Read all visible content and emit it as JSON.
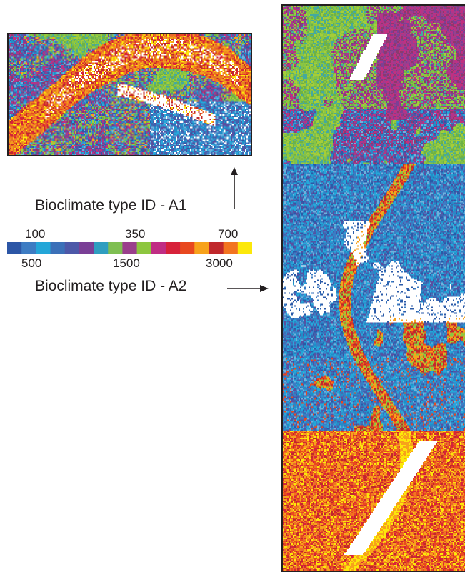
{
  "legend": {
    "a1_label": "Bioclimate type ID - A1",
    "a2_label": "Bioclimate type ID - A2",
    "ticks_top": [
      "100",
      "350",
      "700"
    ],
    "ticks_bottom": [
      "500",
      "1500",
      "3000"
    ],
    "colorbar_colors": [
      "#2c56a6",
      "#3d7cc3",
      "#24a6d8",
      "#3b70b8",
      "#4d58a8",
      "#7a3f96",
      "#2f9ec0",
      "#7fbf52",
      "#9a3f8c",
      "#8dc63f",
      "#c02d84",
      "#d7223a",
      "#e8481f",
      "#f7a21b",
      "#c0282c",
      "#f27420",
      "#fce80a"
    ]
  },
  "maps": {
    "a1": {
      "name": "A1 bioclimate map"
    },
    "a2": {
      "name": "A2 bioclimate map"
    }
  }
}
